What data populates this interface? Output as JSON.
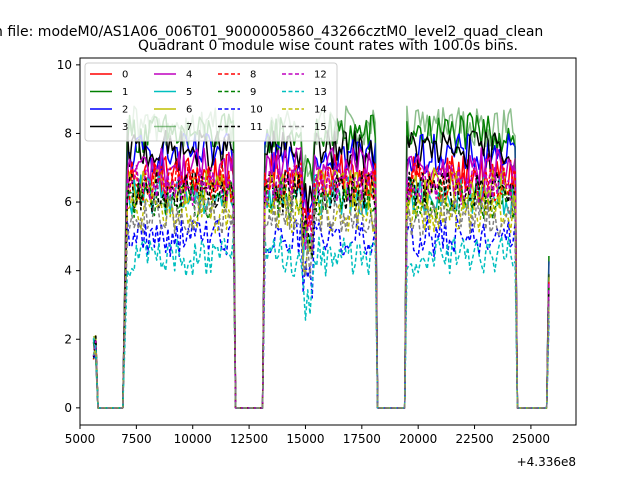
{
  "figure": {
    "suptitle": "n file: modeM0/AS1A06_006T01_9000005860_43266cztM0_level2_quad_clean",
    "offset_text": "+4.336e8"
  },
  "chart_data": {
    "type": "line",
    "title": "Quadrant 0 module wise count rates with 100.0s bins.",
    "xlabel": "",
    "ylabel": "",
    "xlim": [
      5000,
      27000
    ],
    "ylim": [
      -0.5,
      10.2
    ],
    "xticks": [
      5000,
      7500,
      10000,
      12500,
      15000,
      17500,
      20000,
      22500,
      25000
    ],
    "xtick_labels": [
      "5000",
      "7500",
      "10000",
      "12500",
      "15000",
      "17500",
      "20000",
      "22500",
      "25000"
    ],
    "yticks": [
      0,
      2,
      4,
      6,
      8,
      10
    ],
    "ytick_labels": [
      "0",
      "2",
      "4",
      "6",
      "8",
      "10"
    ],
    "grid": false,
    "legend_placement": "upper-left",
    "legend_columns": 4,
    "segments": [
      {
        "start": 5600,
        "end": 5700,
        "kind": "high"
      },
      {
        "start": 5800,
        "end": 6900,
        "kind": "zero"
      },
      {
        "start": 7100,
        "end": 11800,
        "kind": "high"
      },
      {
        "start": 11900,
        "end": 13100,
        "kind": "zero"
      },
      {
        "start": 13200,
        "end": 18100,
        "kind": "high"
      },
      {
        "start": 18200,
        "end": 19400,
        "kind": "zero"
      },
      {
        "start": 19500,
        "end": 24300,
        "kind": "high"
      },
      {
        "start": 24400,
        "end": 25700,
        "kind": "zero"
      },
      {
        "start": 25800,
        "end": 25800,
        "kind": "spike"
      }
    ],
    "series": [
      {
        "name": "0",
        "color": "#ff0000",
        "dash": "solid",
        "level": 6.8,
        "alpha": 1.0
      },
      {
        "name": "1",
        "color": "#008000",
        "dash": "solid",
        "level": 8.0,
        "alpha": 1.0
      },
      {
        "name": "2",
        "color": "#0000ff",
        "dash": "solid",
        "level": 7.4,
        "alpha": 1.0
      },
      {
        "name": "3",
        "color": "#000000",
        "dash": "solid",
        "level": 7.5,
        "alpha": 1.0
      },
      {
        "name": "4",
        "color": "#bf00bf",
        "dash": "solid",
        "level": 7.0,
        "alpha": 1.0
      },
      {
        "name": "5",
        "color": "#00bfbf",
        "dash": "solid",
        "level": 6.2,
        "alpha": 1.0
      },
      {
        "name": "6",
        "color": "#bfbf00",
        "dash": "solid",
        "level": 6.4,
        "alpha": 1.0
      },
      {
        "name": "7",
        "color": "#2e8b2e",
        "dash": "solid",
        "level": 8.2,
        "alpha": 0.55
      },
      {
        "name": "8",
        "color": "#ff0000",
        "dash": "dashed",
        "level": 6.6,
        "alpha": 1.0
      },
      {
        "name": "9",
        "color": "#008000",
        "dash": "dashed",
        "level": 6.1,
        "alpha": 1.0
      },
      {
        "name": "10",
        "color": "#0000ff",
        "dash": "dashed",
        "level": 5.0,
        "alpha": 1.0
      },
      {
        "name": "11",
        "color": "#000000",
        "dash": "dashed",
        "level": 6.3,
        "alpha": 1.0
      },
      {
        "name": "12",
        "color": "#bf00bf",
        "dash": "dashed",
        "level": 6.5,
        "alpha": 1.0
      },
      {
        "name": "13",
        "color": "#00bfbf",
        "dash": "dashed",
        "level": 4.4,
        "alpha": 1.0
      },
      {
        "name": "14",
        "color": "#bfbf00",
        "dash": "dashed",
        "level": 5.7,
        "alpha": 1.0
      },
      {
        "name": "15",
        "color": "#808080",
        "dash": "dashed",
        "level": 5.6,
        "alpha": 1.0
      }
    ]
  }
}
